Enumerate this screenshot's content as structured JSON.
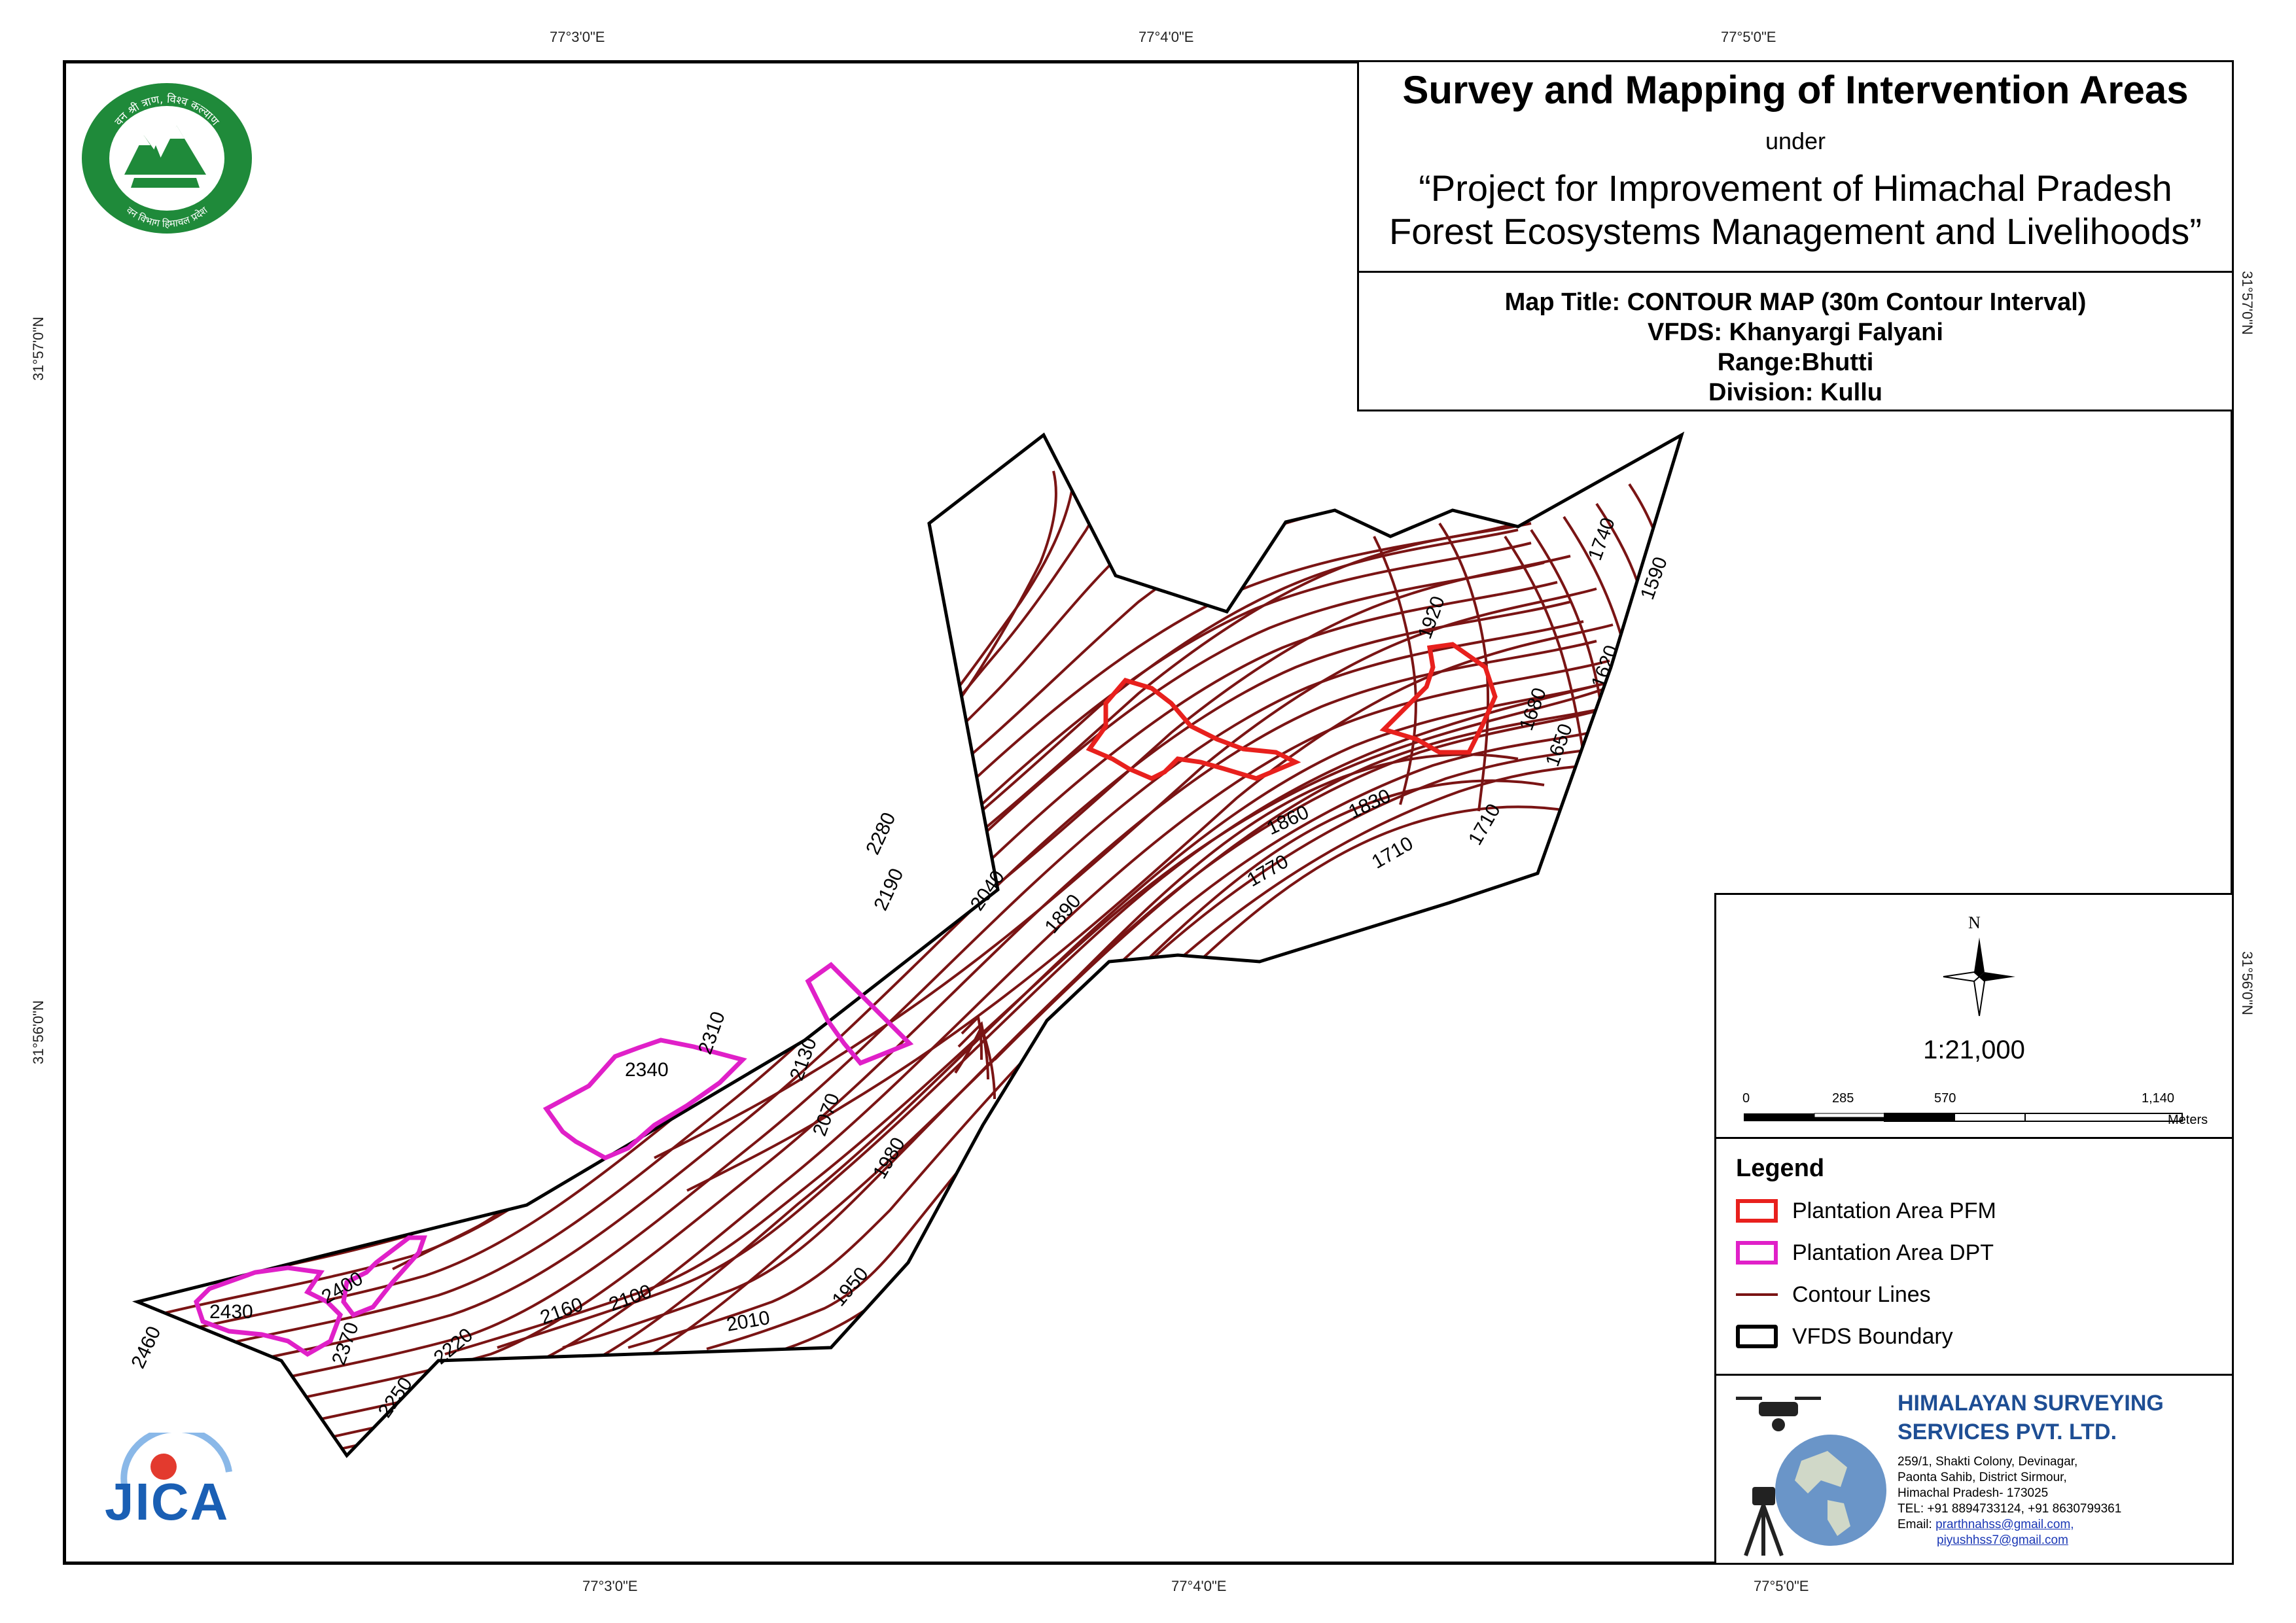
{
  "coordinates": {
    "top": [
      "77°3'0\"E",
      "77°4'0\"E",
      "77°5'0\"E"
    ],
    "bottom": [
      "77°3'0\"E",
      "77°4'0\"E",
      "77°5'0\"E"
    ],
    "left": [
      "31°57'0\"N",
      "31°56'0\"N"
    ],
    "right": [
      "31°57'0\"N",
      "31°56'0\"N"
    ]
  },
  "logos": {
    "forest_dept": {
      "top_text": "वन श्री त्राण, विश्व कल्याण",
      "bottom_text": "वन विभाग हिमाचल प्रदेश"
    },
    "jica": "JICA"
  },
  "header": {
    "title": "Survey and Mapping of Intervention Areas",
    "under": "under",
    "project_line1": "“Project for Improvement of Himachal Pradesh",
    "project_line2": "Forest Ecosystems Management and Livelihoods”"
  },
  "map_info": {
    "map_title": "Map Title: CONTOUR MAP (30m Contour Interval)",
    "vfds": "VFDS: Khanyargi Falyani",
    "range": "Range:Bhutti",
    "division": "Division: Kullu"
  },
  "north_arrow": {
    "label": "N",
    "icon": "compass-rose-icon"
  },
  "scale": {
    "ratio": "1:21,000",
    "ticks": [
      "0",
      "285",
      "570",
      "1,140"
    ],
    "unit": "Meters"
  },
  "legend": {
    "title": "Legend",
    "items": [
      {
        "label": "Plantation Area PFM",
        "color": "#e8201d",
        "kind": "outline"
      },
      {
        "label": "Plantation Area DPT",
        "color": "#e020c8",
        "kind": "outline"
      },
      {
        "label": "Contour Lines",
        "color": "#7a1414",
        "kind": "line"
      },
      {
        "label": "VFDS Boundary",
        "color": "#000000",
        "kind": "outline"
      }
    ]
  },
  "company": {
    "name_line1": "HIMALAYAN SURVEYING",
    "name_line2": "SERVICES PVT. LTD.",
    "addr1": "259/1, Shakti Colony, Devinagar,",
    "addr2": "Paonta Sahib, District Sirmour,",
    "addr3": "Himachal Pradesh- 173025",
    "phone": "TEL: +91 8894733124, +91 8630799361",
    "email_label": "Email:",
    "email1": "prarthnahss@gmail.com,",
    "email2": "piyushhss7@gmail.com"
  },
  "contour_labels": [
    "2460",
    "2430",
    "2400",
    "2370",
    "2250",
    "2220",
    "2160",
    "2100",
    "2010",
    "1950",
    "1980",
    "2070",
    "2130",
    "2340",
    "2310",
    "2280",
    "2190",
    "2040",
    "1890",
    "1770",
    "1860",
    "1830",
    "1710",
    "1710",
    "1920",
    "1680",
    "1650",
    "1620",
    "1590",
    "1740"
  ]
}
